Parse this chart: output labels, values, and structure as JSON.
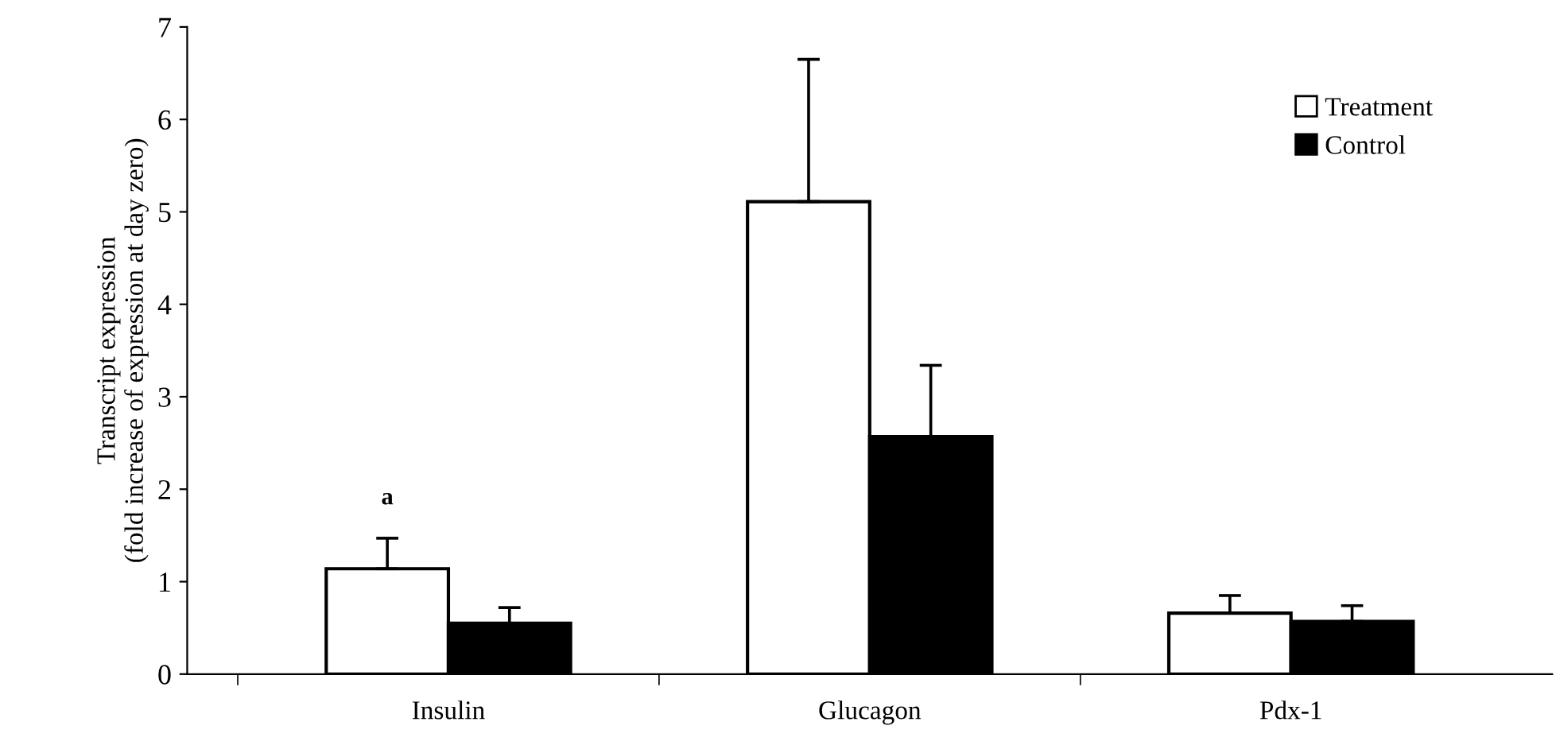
{
  "chart_data": {
    "type": "bar",
    "ylabel": "Transcript expression\n(fold increase of expression at day zero)",
    "categories": [
      "Insulin",
      "Glucagon",
      "Pdx-1"
    ],
    "series": [
      {
        "name": "Treatment",
        "color": "#ffffff",
        "values": [
          1.14,
          5.11,
          0.66
        ],
        "errors": [
          [
            1.14,
            1.47
          ],
          [
            5.11,
            6.65
          ],
          [
            0.66,
            0.85
          ]
        ]
      },
      {
        "name": "Control",
        "color": "#000000",
        "values": [
          0.55,
          2.57,
          0.57
        ],
        "errors": [
          [
            0.55,
            0.72
          ],
          [
            2.57,
            3.34
          ],
          [
            0.57,
            0.74
          ]
        ]
      }
    ],
    "annotations": [
      "a"
    ],
    "ylim": [
      0,
      7
    ],
    "yticks": [
      0,
      1,
      2,
      3,
      4,
      5,
      6,
      7
    ],
    "legend": "top right",
    "grid": false
  }
}
